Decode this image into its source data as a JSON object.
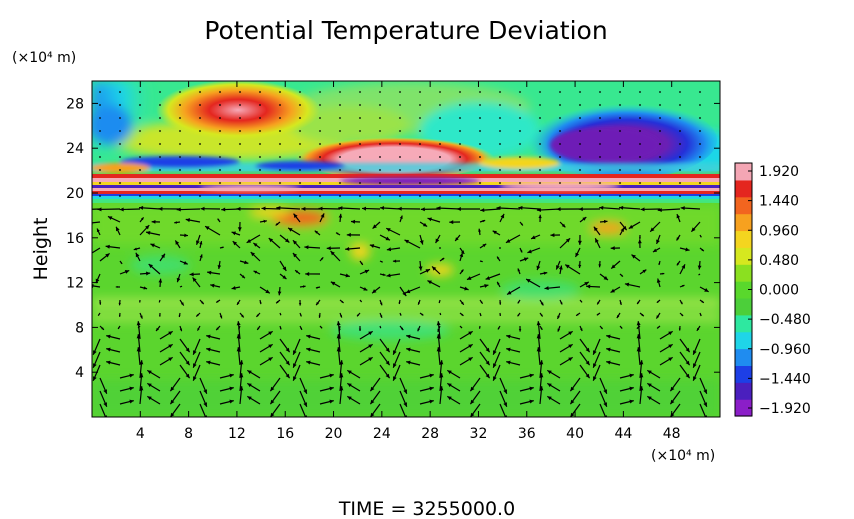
{
  "chart_data": {
    "type": "heatmap",
    "title": "Potential Temperature Deviation",
    "ylabel": "Height",
    "x_unit_label": "(×10⁴ m)",
    "y_unit_label": "(×10⁴ m)",
    "footer": "TIME = 3255000.0",
    "xlim": [
      0,
      52
    ],
    "ylim": [
      0,
      30
    ],
    "x_ticks": [
      4,
      8,
      12,
      16,
      20,
      24,
      28,
      32,
      36,
      40,
      44,
      48
    ],
    "y_ticks": [
      4,
      8,
      12,
      16,
      20,
      24,
      28
    ],
    "x_tick_labels": [
      "4",
      "8",
      "12",
      "16",
      "20",
      "24",
      "28",
      "32",
      "36",
      "40",
      "44",
      "48"
    ],
    "y_tick_labels": [
      "4",
      "8",
      "12",
      "16",
      "20",
      "24",
      "28"
    ],
    "colorbar": {
      "range": [
        -1.92,
        1.92
      ],
      "tick_values": [
        1.92,
        1.44,
        0.96,
        0.48,
        0.0,
        -0.48,
        -0.96,
        -1.44,
        -1.92
      ],
      "tick_labels": [
        "1.920",
        "1.440",
        "0.960",
        "0.480",
        "0.000",
        "−0.480",
        "−0.960",
        "−1.440",
        "−1.920"
      ],
      "colors": [
        "#8b1ec8",
        "#4a1fbe",
        "#1d3fe6",
        "#1f8cf0",
        "#1fd5e8",
        "#2ee8a0",
        "#4ccf3a",
        "#59d82c",
        "#8be020",
        "#d6e81f",
        "#f4d51f",
        "#f7a11f",
        "#f2651f",
        "#e4261f",
        "#f4a6b4"
      ]
    },
    "features": [
      {
        "kind": "warm_anomaly",
        "x": 10.5,
        "y": 27.2,
        "value": 1.9
      },
      {
        "kind": "warm_anomaly",
        "x": 28.5,
        "y": 23.3,
        "value": 1.9
      },
      {
        "kind": "cold_anomaly",
        "x": 43.0,
        "y": 24.5,
        "value": -1.9
      },
      {
        "kind": "warm_layer",
        "y": 19.9,
        "value": 1.9
      },
      {
        "kind": "cold_layer",
        "y": 20.6,
        "value": -1.6
      },
      {
        "kind": "cold_layer",
        "y": 21.0,
        "value": -1.0
      }
    ]
  }
}
